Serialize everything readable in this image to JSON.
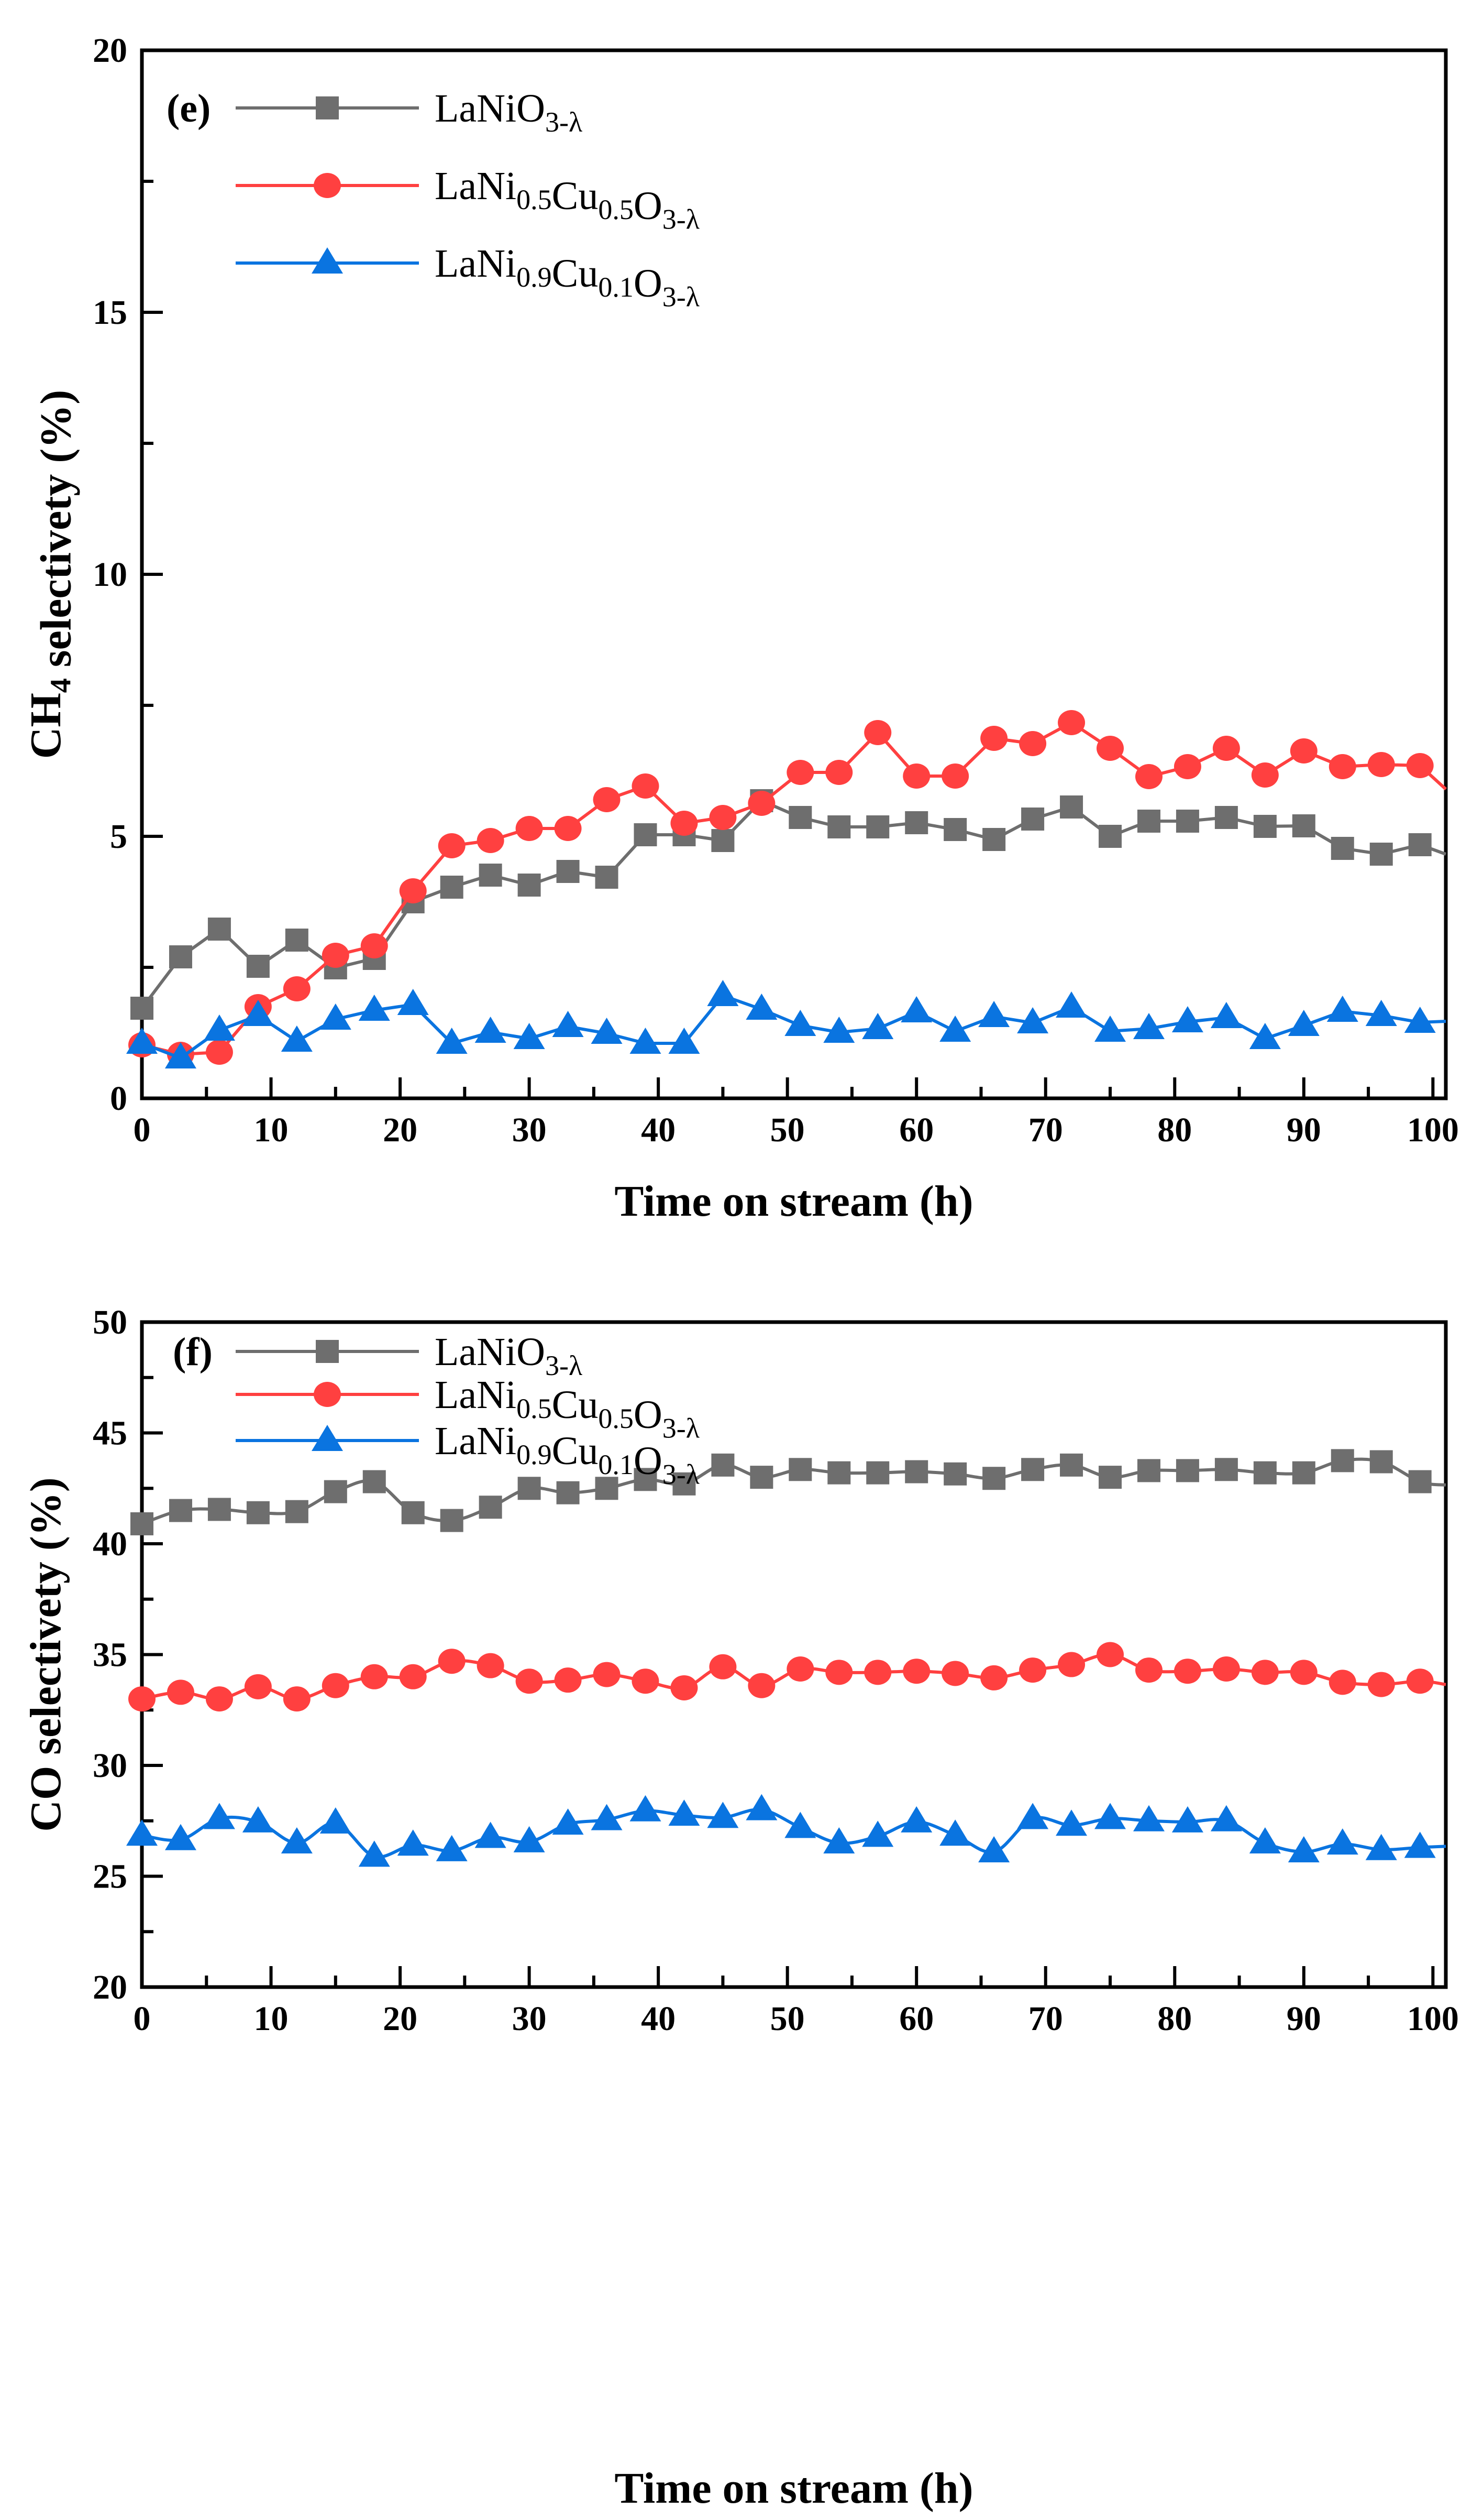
{
  "chart_data": [
    {
      "type": "line",
      "panel_label": "(e)",
      "xlabel": "Time on stream (h)",
      "ylabel": "CH4 selectivety (%)",
      "xlim": [
        0,
        101
      ],
      "ylim": [
        0,
        20
      ],
      "xticks": [
        0,
        10,
        20,
        30,
        40,
        50,
        60,
        70,
        80,
        90,
        100
      ],
      "yticks": [
        0,
        5,
        10,
        15,
        20
      ],
      "smooth": false,
      "legend_position": "top-left",
      "x": [
        0,
        3,
        6,
        9,
        12,
        15,
        18,
        21,
        24,
        27,
        30,
        33,
        36,
        39,
        42,
        45,
        48,
        51,
        54,
        57,
        60,
        63,
        66,
        69,
        72,
        75,
        78,
        81,
        84,
        87,
        90,
        93,
        96,
        99,
        101
      ],
      "series": [
        {
          "name": "LaNiO3-λ",
          "marker": "square",
          "color": "#6e6e6e",
          "values": [
            1.72,
            2.7,
            3.23,
            2.52,
            3.02,
            2.49,
            2.67,
            3.75,
            4.03,
            4.26,
            4.07,
            4.33,
            4.22,
            5.03,
            5.03,
            4.92,
            5.68,
            5.36,
            5.18,
            5.18,
            5.26,
            5.13,
            4.94,
            5.33,
            5.56,
            5.0,
            5.29,
            5.29,
            5.36,
            5.19,
            5.2,
            4.77,
            4.66,
            4.84,
            4.66
          ]
        },
        {
          "name": "LaNi0.5Cu0.5O3-λ",
          "marker": "circle",
          "color": "#ff4040",
          "values": [
            1.02,
            0.84,
            0.88,
            1.75,
            2.09,
            2.73,
            2.91,
            3.96,
            4.82,
            4.92,
            5.15,
            5.15,
            5.7,
            5.96,
            5.25,
            5.36,
            5.63,
            6.22,
            6.22,
            6.98,
            6.15,
            6.15,
            6.87,
            6.77,
            7.17,
            6.68,
            6.14,
            6.33,
            6.68,
            6.17,
            6.63,
            6.33,
            6.37,
            6.35,
            5.9
          ]
        },
        {
          "name": "LaNi0.9Cu0.1O3-λ",
          "marker": "triangle",
          "color": "#0a74e0",
          "values": [
            1.05,
            0.77,
            1.3,
            1.58,
            1.09,
            1.51,
            1.68,
            1.79,
            1.05,
            1.26,
            1.14,
            1.37,
            1.24,
            1.05,
            1.05,
            1.96,
            1.7,
            1.39,
            1.26,
            1.33,
            1.65,
            1.28,
            1.56,
            1.44,
            1.74,
            1.28,
            1.33,
            1.46,
            1.54,
            1.14,
            1.39,
            1.66,
            1.58,
            1.45,
            1.47
          ]
        }
      ]
    },
    {
      "type": "line",
      "panel_label": "(f)",
      "xlabel": "Time on stream (h)",
      "ylabel": "CO selectivety (%)",
      "xlim": [
        0,
        101
      ],
      "ylim": [
        20,
        50
      ],
      "xticks": [
        0,
        10,
        20,
        30,
        40,
        50,
        60,
        70,
        80,
        90,
        100
      ],
      "yticks": [
        20,
        25,
        30,
        35,
        40,
        45,
        50
      ],
      "smooth": true,
      "legend_position": "top-left",
      "x": [
        0,
        3,
        6,
        9,
        12,
        15,
        18,
        21,
        24,
        27,
        30,
        33,
        36,
        39,
        42,
        45,
        48,
        51,
        54,
        57,
        60,
        63,
        66,
        69,
        72,
        75,
        78,
        81,
        84,
        87,
        90,
        93,
        96,
        99,
        101
      ],
      "series": [
        {
          "name": "LaNiO3-λ",
          "marker": "square",
          "color": "#6e6e6e",
          "values": [
            40.9,
            41.5,
            41.55,
            41.4,
            41.45,
            42.35,
            42.8,
            41.4,
            41.05,
            41.65,
            42.5,
            42.3,
            42.5,
            42.9,
            42.7,
            43.55,
            43.0,
            43.35,
            43.2,
            43.2,
            43.25,
            43.15,
            42.95,
            43.35,
            43.55,
            43.0,
            43.3,
            43.3,
            43.35,
            43.2,
            43.2,
            43.75,
            43.7,
            42.8,
            42.65
          ]
        },
        {
          "name": "LaNi0.5Cu0.5O3-λ",
          "marker": "circle",
          "color": "#ff4040",
          "values": [
            33.0,
            33.3,
            33.0,
            33.55,
            33.0,
            33.6,
            34.0,
            34.0,
            34.7,
            34.5,
            33.8,
            33.85,
            34.1,
            33.8,
            33.5,
            34.45,
            33.6,
            34.35,
            34.2,
            34.2,
            34.25,
            34.15,
            33.95,
            34.3,
            34.55,
            35.0,
            34.3,
            34.25,
            34.35,
            34.2,
            34.2,
            33.75,
            33.65,
            33.8,
            33.65
          ]
        },
        {
          "name": "LaNi0.9Cu0.1O3-λ",
          "marker": "triangle",
          "color": "#0a74e0",
          "values": [
            26.85,
            26.65,
            27.6,
            27.45,
            26.5,
            27.4,
            25.9,
            26.4,
            26.15,
            26.75,
            26.55,
            27.35,
            27.55,
            27.95,
            27.75,
            27.65,
            28.0,
            27.2,
            26.5,
            26.8,
            27.45,
            26.85,
            26.1,
            27.6,
            27.3,
            27.6,
            27.5,
            27.45,
            27.5,
            26.5,
            26.1,
            26.45,
            26.2,
            26.3,
            26.35
          ]
        }
      ]
    }
  ]
}
